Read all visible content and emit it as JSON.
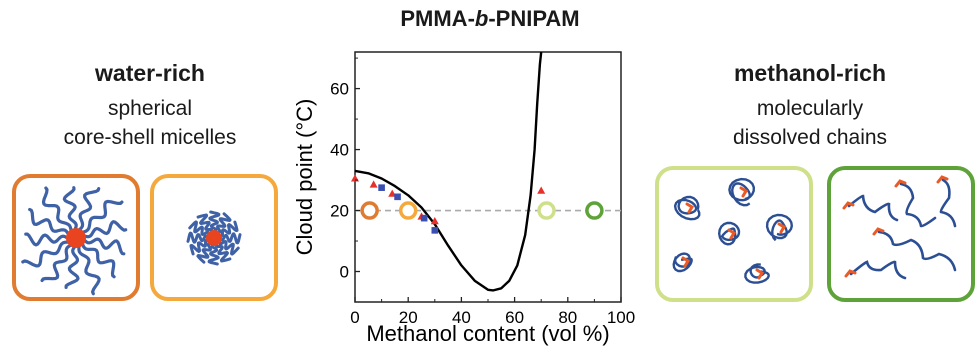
{
  "figure": {
    "title_prefix": "PMMA-",
    "title_italic": "b",
    "title_suffix": "-PNIPAM"
  },
  "left_panel": {
    "title": "water-rich",
    "desc_line1": "spherical",
    "desc_line2": "core-shell micelles",
    "box_colors": [
      "#e07b30",
      "#f5a93c"
    ],
    "chain_color": "#3f62a6",
    "core_color": "#e8441f"
  },
  "right_panel": {
    "title": "methanol-rich",
    "desc_line1": "molecularly",
    "desc_line2": "dissolved chains",
    "box_colors": [
      "#cfe08a",
      "#5ea33a"
    ],
    "chain_color": "#2c4f93",
    "end_color": "#ea5a26"
  },
  "chart_data": {
    "type": "line",
    "title": "",
    "xlabel": "Methanol content (vol %)",
    "ylabel": "Cloud point (°C)",
    "xlim": [
      0,
      100
    ],
    "ylim": [
      -10,
      72
    ],
    "xticks": [
      0,
      20,
      40,
      60,
      80,
      100
    ],
    "yticks": [
      0,
      20,
      40,
      60
    ],
    "grid": false,
    "reference_line": {
      "y": 20,
      "style": "dashed",
      "color": "#aaaaaa"
    },
    "curve": {
      "color": "#000000",
      "x": [
        0,
        5,
        10,
        15,
        20,
        25,
        30,
        35,
        40,
        45,
        50,
        52,
        55,
        58,
        61,
        64,
        66,
        67.5,
        68.5,
        69.5,
        70
      ],
      "y": [
        33,
        32.2,
        30.5,
        28,
        25,
        21,
        15.5,
        8.5,
        2,
        -3,
        -6,
        -6.2,
        -5.5,
        -3,
        2,
        12,
        25,
        40,
        55,
        68,
        72
      ]
    },
    "series": [
      {
        "marker": "triangle",
        "color": "#e8302a",
        "x": [
          0,
          7,
          14,
          21,
          25,
          30,
          70
        ],
        "y": [
          30.5,
          28.5,
          25.5,
          21.5,
          18,
          16.5,
          26.5
        ]
      },
      {
        "marker": "square",
        "color": "#3a4fb0",
        "x": [
          10,
          16,
          20,
          26,
          30
        ],
        "y": [
          27.5,
          24.5,
          21.5,
          17.5,
          13.5
        ]
      }
    ],
    "state_markers": [
      {
        "x": 5.5,
        "y": 20,
        "color": "#e07b30"
      },
      {
        "x": 20,
        "y": 20,
        "color": "#f5a93c"
      },
      {
        "x": 72,
        "y": 20,
        "color": "#cfe08a"
      },
      {
        "x": 90,
        "y": 20,
        "color": "#5ea33a"
      }
    ]
  }
}
